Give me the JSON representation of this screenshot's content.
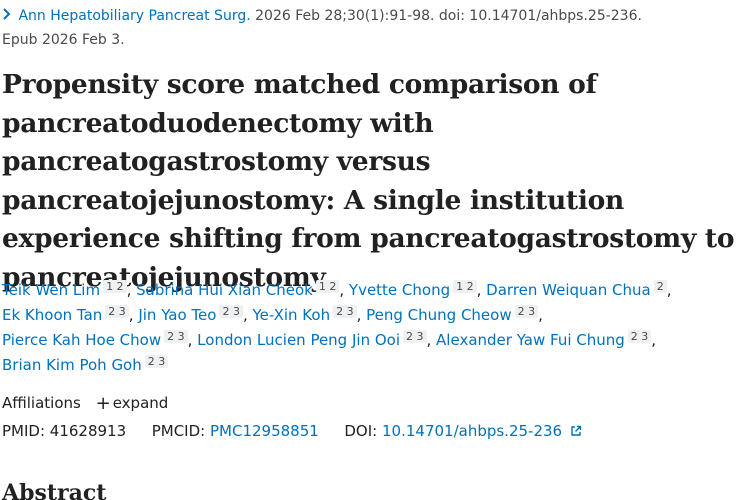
{
  "citation": {
    "journal": "Ann Hepatobiliary Pancreat Surg.",
    "details": "2026 Feb 28;30(1):91-98. doi: 10.14701/ahbps.25-236.",
    "epub": "Epub 2026 Feb 3."
  },
  "title": "Propensity score matched comparison of pancreatoduodenectomy with pancreatogastrostomy versus pancreatojejunostomy: A single institution experience shifting from pancreatogastrostomy to pancreatojejunostomy",
  "authors": [
    {
      "name": "Teik Wen Lim",
      "affs": "1 2"
    },
    {
      "name": "Sabrina Hui Xian Cheok",
      "affs": "1 2"
    },
    {
      "name": "Yvette Chong",
      "affs": "1 2"
    },
    {
      "name": "Darren Weiquan Chua",
      "affs": "2"
    },
    {
      "name": "Ek Khoon Tan",
      "affs": "2 3"
    },
    {
      "name": "Jin Yao Teo",
      "affs": "2 3"
    },
    {
      "name": "Ye-Xin Koh",
      "affs": "2 3"
    },
    {
      "name": "Peng Chung Cheow",
      "affs": "2 3"
    },
    {
      "name": "Pierce Kah Hoe Chow",
      "affs": "2 3"
    },
    {
      "name": "London Lucien Peng Jin Ooi",
      "affs": "2 3"
    },
    {
      "name": "Alexander Yaw Fui Chung",
      "affs": "2 3"
    },
    {
      "name": "Brian Kim Poh Goh",
      "affs": "2 3"
    }
  ],
  "affiliations": {
    "label": "Affiliations",
    "expand_label": "expand"
  },
  "identifiers": {
    "pmid_label": "PMID:",
    "pmid": "41628913",
    "pmcid_label": "PMCID:",
    "pmcid": "PMC12958851",
    "doi_label": "DOI:",
    "doi": "10.14701/ahbps.25-236"
  },
  "abstract_heading": "Abstract",
  "colors": {
    "link": "#0071bc",
    "text": "#212121"
  }
}
